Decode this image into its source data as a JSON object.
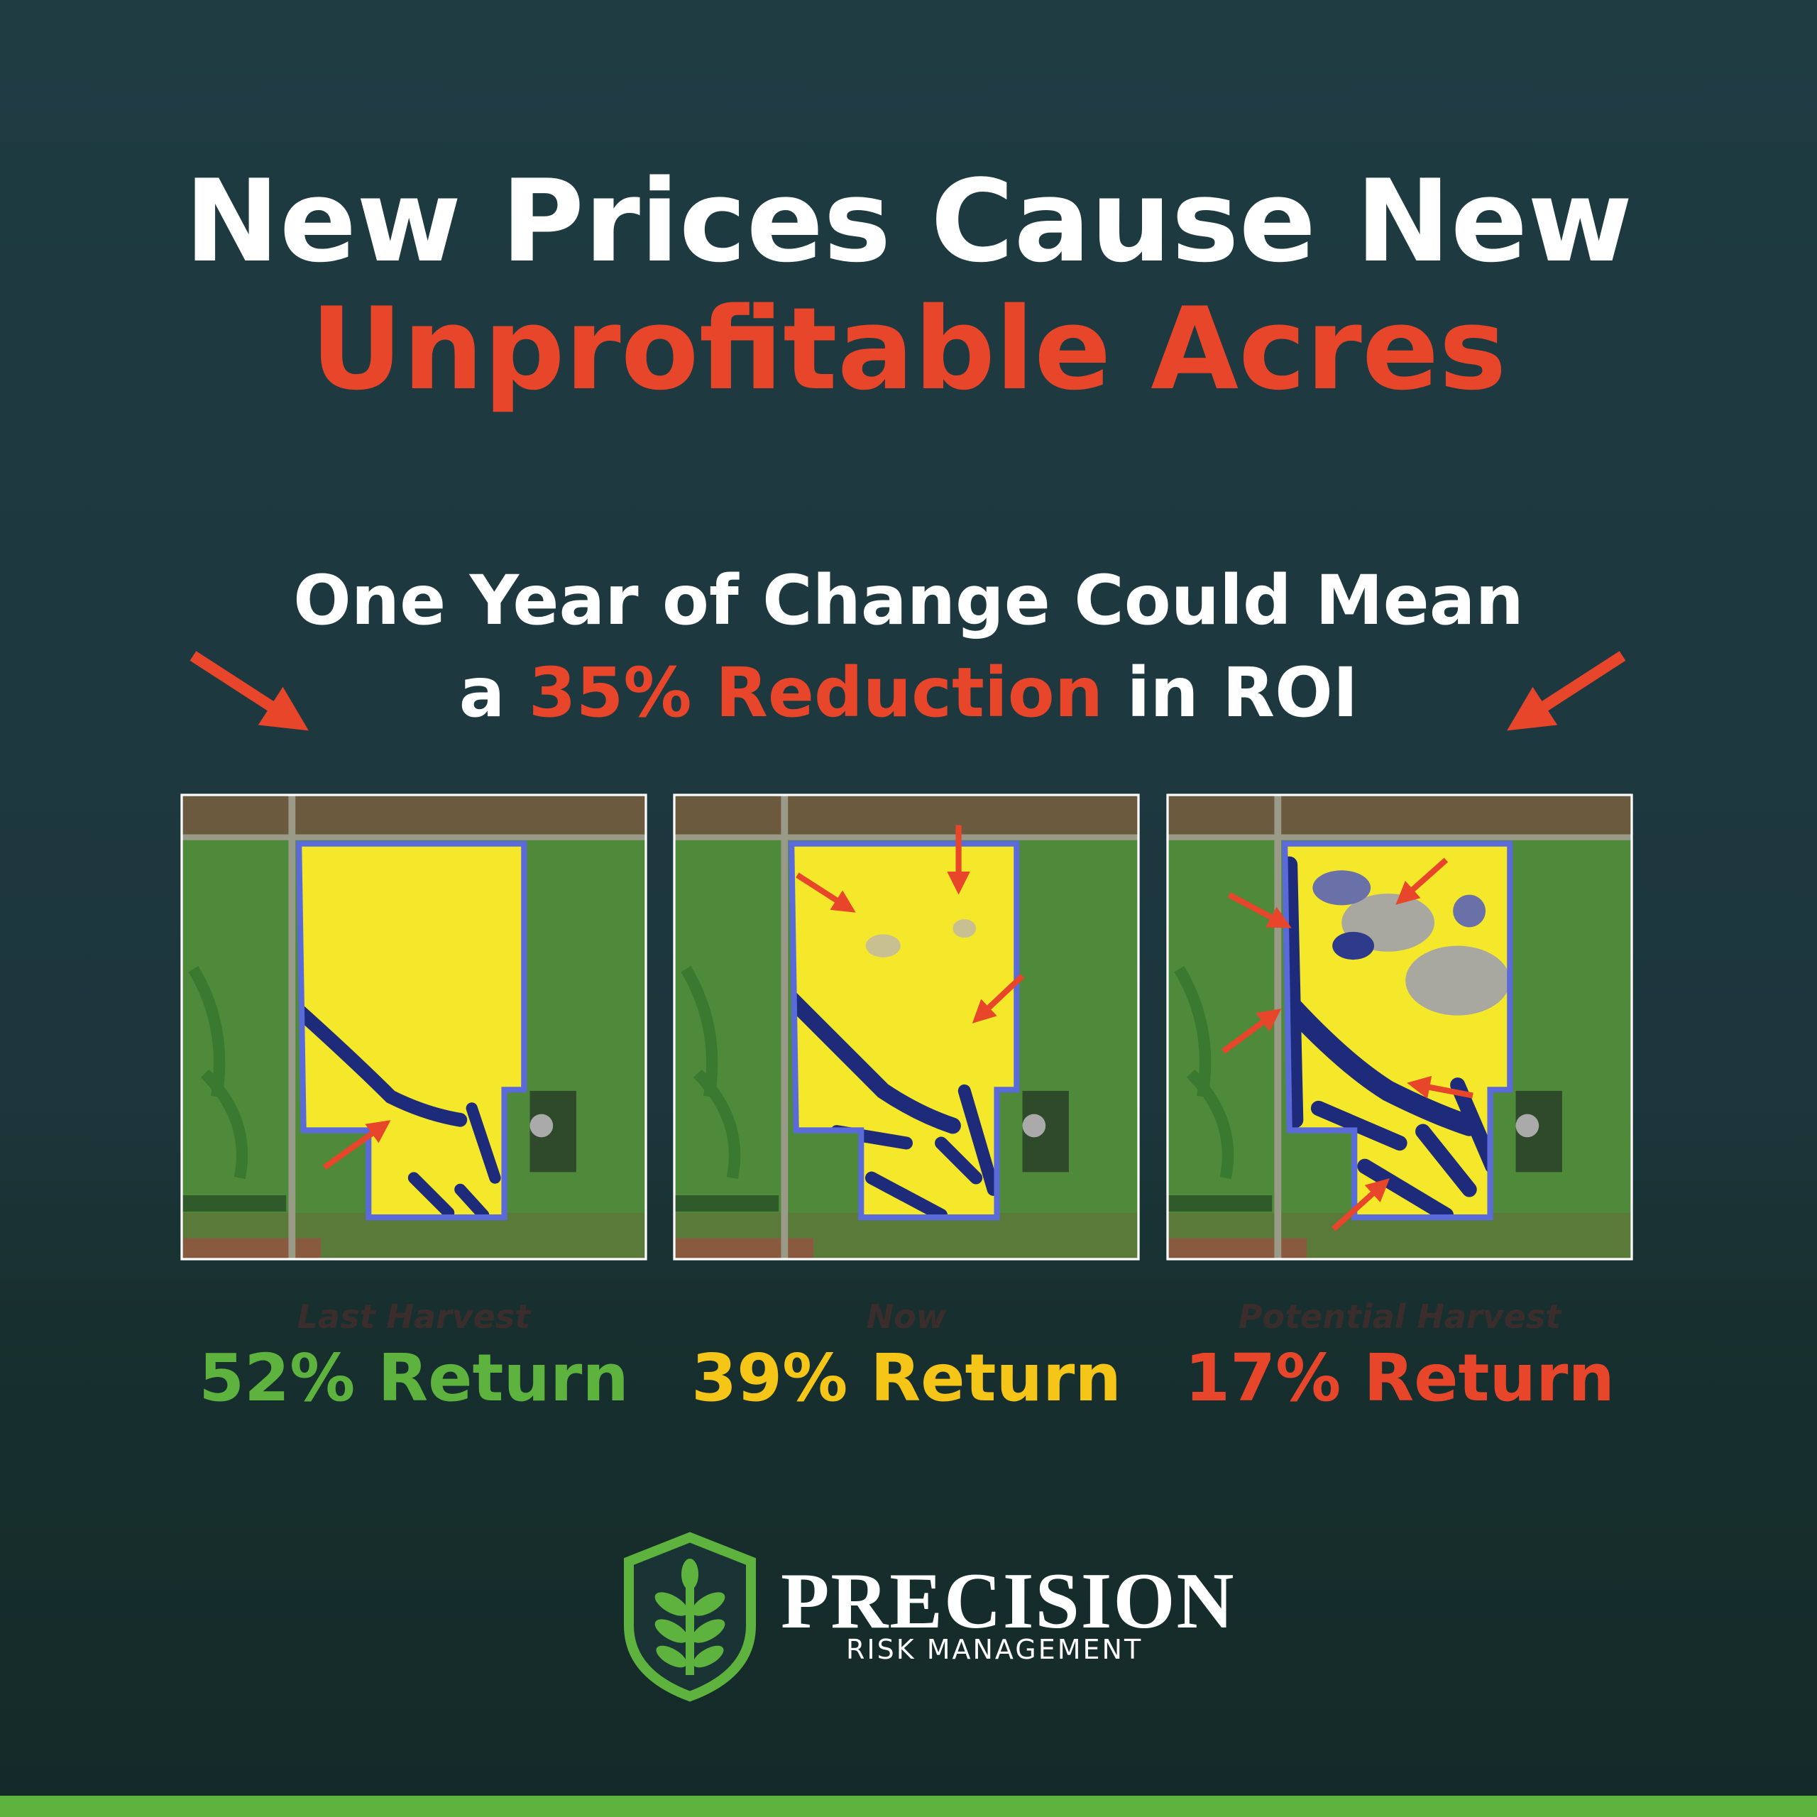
{
  "header": {
    "title_line1": "New Prices Cause New",
    "title_line2": "Unprofitable Acres"
  },
  "subtitle": {
    "line1": "One Year of Change Could Mean",
    "line2_prefix": "a",
    "line2_highlight": "35% Reduction",
    "line2_suffix": "in ROI"
  },
  "panels": [
    {
      "label": "Last Harvest",
      "return": "52% Return"
    },
    {
      "label": "Now",
      "return": "39% Return"
    },
    {
      "label": "Potential Harvest",
      "return": "17% Return"
    }
  ],
  "logo": {
    "name": "PRECISION",
    "tagline": "RISK MANAGEMENT"
  }
}
